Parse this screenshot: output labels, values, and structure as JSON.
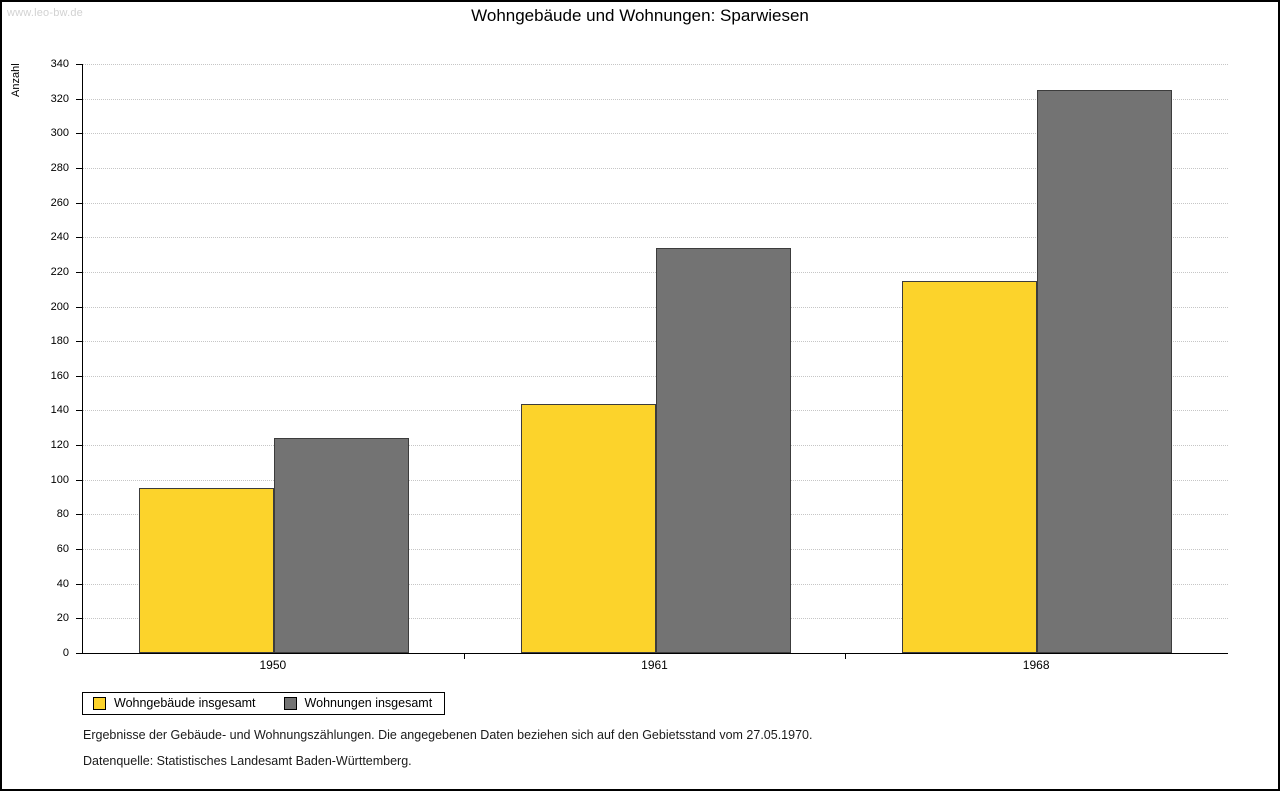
{
  "watermark": "www.leo-bw.de",
  "chart_data": {
    "type": "bar",
    "title": "Wohngebäude und Wohnungen: Sparwiesen",
    "xlabel": "",
    "ylabel": "Anzahl",
    "categories": [
      "1950",
      "1961",
      "1968"
    ],
    "series": [
      {
        "name": "Wohngebäude insgesamt",
        "color": "#fcd32b",
        "values": [
          95,
          144,
          215
        ]
      },
      {
        "name": "Wohnungen insgesamt",
        "color": "#737373",
        "values": [
          124,
          234,
          325
        ]
      }
    ],
    "ylim": [
      0,
      340
    ],
    "ytick_step": 20,
    "grid": true,
    "legend_position": "bottom-left"
  },
  "footnotes": [
    "Ergebnisse der Gebäude- und Wohnungszählungen. Die angegebenen Daten beziehen sich auf den Gebietsstand vom 27.05.1970.",
    "Datenquelle: Statistisches Landesamt Baden-Württemberg."
  ]
}
